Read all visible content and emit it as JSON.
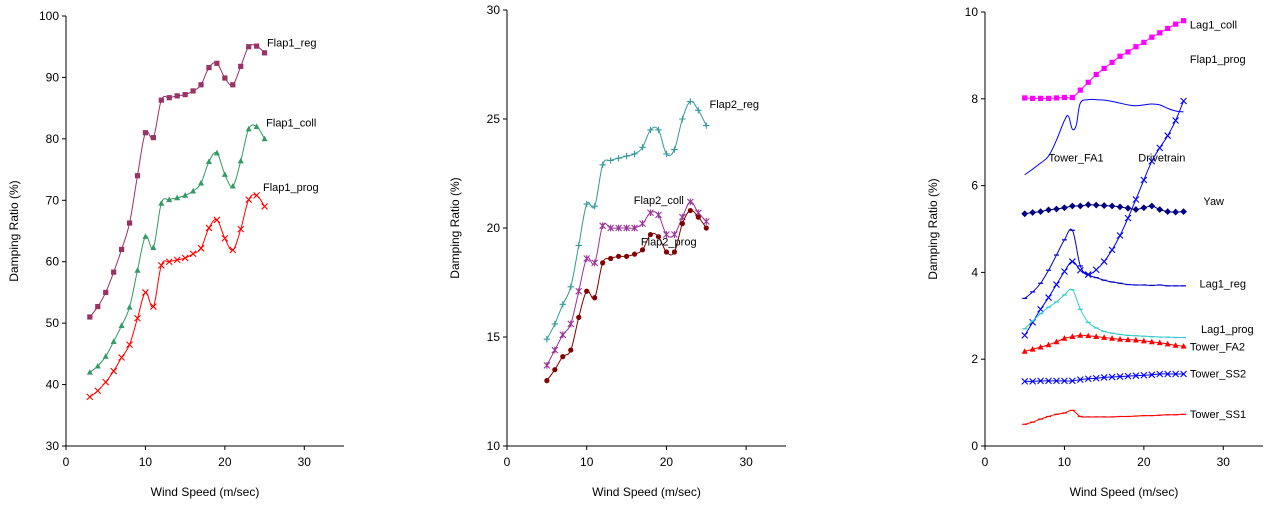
{
  "chart_data": [
    {
      "type": "line",
      "title": "",
      "xlabel": "Wind Speed (m/sec)",
      "ylabel": "Damping Ratio (%)",
      "xlim": [
        0,
        35
      ],
      "ylim": [
        30,
        100
      ],
      "xticks": [
        0,
        10,
        20,
        30
      ],
      "yticks": [
        30,
        40,
        50,
        60,
        70,
        80,
        90,
        100
      ],
      "grid": false,
      "series": [
        {
          "name": "Flap1_reg",
          "color": "#993366",
          "marker": "square",
          "x": [
            3,
            4,
            5,
            6,
            7,
            8,
            9,
            10,
            11,
            12,
            13,
            14,
            15,
            16,
            17,
            18,
            19,
            20,
            21,
            22,
            23,
            24,
            25
          ],
          "y": [
            51,
            52.7,
            55,
            58.3,
            62,
            66.3,
            74,
            81,
            80.2,
            86.3,
            86.7,
            87,
            87.2,
            87.8,
            88.8,
            91.6,
            92.3,
            89.9,
            88.8,
            91.8,
            95,
            95.1,
            94
          ]
        },
        {
          "name": "Flap1_coll",
          "color": "#339966",
          "marker": "triangle",
          "x": [
            3,
            4,
            5,
            6,
            7,
            8,
            9,
            10,
            11,
            12,
            13,
            14,
            15,
            16,
            17,
            18,
            19,
            20,
            21,
            22,
            23,
            24,
            25
          ],
          "y": [
            42,
            43,
            44.6,
            47,
            49.6,
            52.6,
            58.6,
            64.1,
            62.3,
            69.5,
            70.1,
            70.4,
            70.8,
            71.5,
            72.8,
            76.3,
            77.7,
            74.2,
            72.3,
            76.4,
            81.6,
            82,
            80
          ]
        },
        {
          "name": "Flap1_prog",
          "color": "#ff0000",
          "marker": "x",
          "x": [
            3,
            4,
            5,
            6,
            7,
            8,
            9,
            10,
            11,
            12,
            13,
            14,
            15,
            16,
            17,
            18,
            19,
            20,
            21,
            22,
            23,
            24,
            25
          ],
          "y": [
            38,
            39,
            40.4,
            42.2,
            44.4,
            46.5,
            50.8,
            55,
            52.7,
            59.4,
            60,
            60.3,
            60.6,
            61.3,
            62.2,
            65.5,
            66.8,
            63.8,
            61.9,
            65.3,
            70.1,
            70.8,
            69
          ]
        }
      ],
      "annotations": [
        {
          "text": "Flap1_reg",
          "x": 25.3,
          "y": 95
        },
        {
          "text": "Flap1_coll",
          "x": 25.2,
          "y": 82
        },
        {
          "text": "Flap1_prog",
          "x": 24.8,
          "y": 71.5
        }
      ]
    },
    {
      "type": "line",
      "title": "",
      "xlabel": "Wind Speed (m/sec)",
      "ylabel": "Damping Ratio (%)",
      "xlim": [
        0,
        35
      ],
      "ylim": [
        10,
        30
      ],
      "xticks": [
        0,
        10,
        20,
        30
      ],
      "yticks": [
        10,
        15,
        20,
        25,
        30
      ],
      "grid": false,
      "series": [
        {
          "name": "Flap2_reg",
          "color": "#339999",
          "marker": "plus",
          "x": [
            5,
            6,
            7,
            8,
            9,
            10,
            11,
            12,
            13,
            14,
            15,
            16,
            17,
            18,
            19,
            20,
            21,
            22,
            23,
            24,
            25
          ],
          "y": [
            14.9,
            15.6,
            16.5,
            17.3,
            19.2,
            21.1,
            21,
            22.9,
            23.1,
            23.2,
            23.3,
            23.4,
            23.7,
            24.5,
            24.5,
            23.4,
            23.6,
            25,
            25.8,
            25.4,
            24.7
          ]
        },
        {
          "name": "Flap2_coll",
          "color": "#993399",
          "marker": "star",
          "x": [
            5,
            6,
            7,
            8,
            9,
            10,
            11,
            12,
            13,
            14,
            15,
            16,
            17,
            18,
            19,
            20,
            21,
            22,
            23,
            24,
            25
          ],
          "y": [
            13.7,
            14.4,
            15.1,
            15.6,
            17.1,
            18.6,
            18.4,
            20.1,
            20,
            20,
            20,
            20,
            20.2,
            20.7,
            20.6,
            19.7,
            19.7,
            20.5,
            21.2,
            20.7,
            20.3
          ]
        },
        {
          "name": "Flap2_prog",
          "color": "#800000",
          "marker": "dot",
          "x": [
            5,
            6,
            7,
            8,
            9,
            10,
            11,
            12,
            13,
            14,
            15,
            16,
            17,
            18,
            19,
            20,
            21,
            22,
            23,
            24,
            25
          ],
          "y": [
            13,
            13.5,
            14.1,
            14.4,
            15.9,
            17.1,
            16.8,
            18.4,
            18.6,
            18.7,
            18.7,
            18.8,
            19,
            19.7,
            19.6,
            18.9,
            18.9,
            20.2,
            20.8,
            20.5,
            20
          ]
        }
      ],
      "annotations": [
        {
          "text": "Flap2_reg",
          "x": 25.4,
          "y": 25.5
        },
        {
          "text": "Flap2_coll",
          "x": 15.9,
          "y": 21.1
        },
        {
          "text": "Flap2_prog",
          "x": 16.8,
          "y": 19.2
        }
      ]
    },
    {
      "type": "line",
      "title": "",
      "xlabel": "Wind Speed (m/sec)",
      "ylabel": "Damping Ratio (%)",
      "xlim": [
        0,
        35
      ],
      "ylim": [
        0,
        10
      ],
      "xticks": [
        0,
        10,
        20,
        30
      ],
      "yticks": [
        0,
        2,
        4,
        6,
        8,
        10
      ],
      "grid": false,
      "series": [
        {
          "name": "Lag1_coll",
          "color": "#ff00ff",
          "marker": "square",
          "x": [
            5,
            6,
            7,
            8,
            9,
            10,
            11,
            12,
            13,
            14,
            15,
            16,
            17,
            18,
            19,
            20,
            21,
            22,
            23,
            24,
            25
          ],
          "y": [
            8.02,
            8.01,
            8.01,
            8.01,
            8.02,
            8.03,
            8.03,
            8.2,
            8.38,
            8.56,
            8.7,
            8.84,
            8.98,
            9.08,
            9.2,
            9.3,
            9.42,
            9.52,
            9.62,
            9.72,
            9.8
          ]
        },
        {
          "name": "Tower_FA1",
          "color": "#0000ff",
          "marker": "none",
          "x": [
            5,
            6,
            7,
            8,
            9,
            10,
            10.5,
            11,
            11.5,
            12,
            13,
            14,
            15,
            16,
            17,
            18,
            19,
            20,
            21,
            22,
            23,
            24,
            25
          ],
          "y": [
            6.25,
            6.38,
            6.52,
            6.68,
            7.05,
            7.5,
            7.6,
            7.3,
            7.4,
            7.9,
            7.98,
            7.98,
            7.97,
            7.94,
            7.9,
            7.86,
            7.84,
            7.86,
            7.88,
            7.86,
            7.78,
            7.72,
            7.7
          ]
        },
        {
          "name": "Drivetrain",
          "color": "#0000ff",
          "marker": "x",
          "x": [
            5,
            6,
            7,
            8,
            9,
            10,
            11,
            12,
            13,
            14,
            15,
            16,
            17,
            18,
            19,
            20,
            21,
            22,
            23,
            24,
            25
          ],
          "y": [
            2.55,
            2.85,
            3.15,
            3.42,
            3.72,
            4.02,
            4.25,
            4.05,
            3.95,
            4.06,
            4.25,
            4.52,
            4.85,
            5.25,
            5.68,
            6.13,
            6.56,
            6.87,
            7.15,
            7.5,
            7.95
          ]
        },
        {
          "name": "Yaw",
          "color": "#000080",
          "marker": "diamond",
          "x": [
            5,
            6,
            7,
            8,
            9,
            10,
            11,
            12,
            13,
            14,
            15,
            16,
            17,
            18,
            19,
            20,
            21,
            22,
            23,
            24,
            25
          ],
          "y": [
            5.35,
            5.38,
            5.4,
            5.44,
            5.46,
            5.49,
            5.53,
            5.53,
            5.56,
            5.55,
            5.54,
            5.53,
            5.51,
            5.48,
            5.45,
            5.49,
            5.53,
            5.45,
            5.4,
            5.39,
            5.4
          ]
        },
        {
          "name": "Lag1_reg",
          "color": "#0000cc",
          "marker": "dash",
          "x": [
            5,
            6,
            7,
            8,
            9,
            10,
            11,
            12,
            13,
            14,
            15,
            16,
            17,
            18,
            19,
            20,
            21,
            22,
            23,
            24,
            25
          ],
          "y": [
            3.4,
            3.55,
            3.75,
            4.05,
            4.4,
            4.75,
            4.97,
            4.15,
            3.95,
            3.88,
            3.82,
            3.78,
            3.75,
            3.72,
            3.71,
            3.71,
            3.7,
            3.71,
            3.69,
            3.69,
            3.69
          ]
        },
        {
          "name": "Lag1_prog",
          "color": "#33cccc",
          "marker": "dash",
          "x": [
            5,
            6,
            7,
            8,
            9,
            10,
            11,
            12,
            13,
            14,
            15,
            16,
            17,
            18,
            19,
            20,
            21,
            22,
            23,
            24,
            25
          ],
          "y": [
            2.7,
            2.88,
            3.05,
            3.2,
            3.32,
            3.48,
            3.6,
            3.15,
            2.85,
            2.72,
            2.64,
            2.6,
            2.57,
            2.55,
            2.54,
            2.53,
            2.52,
            2.51,
            2.51,
            2.5,
            2.5
          ]
        },
        {
          "name": "Tower_FA2",
          "color": "#ff0000",
          "marker": "triangle",
          "x": [
            5,
            6,
            7,
            8,
            9,
            10,
            11,
            12,
            13,
            14,
            15,
            16,
            17,
            18,
            19,
            20,
            21,
            22,
            23,
            24,
            25
          ],
          "y": [
            2.18,
            2.23,
            2.28,
            2.33,
            2.4,
            2.48,
            2.52,
            2.55,
            2.54,
            2.52,
            2.5,
            2.48,
            2.46,
            2.45,
            2.44,
            2.42,
            2.4,
            2.38,
            2.35,
            2.32,
            2.3
          ]
        },
        {
          "name": "Tower_SS2",
          "color": "#0000ff",
          "marker": "x",
          "x": [
            5,
            6,
            7,
            8,
            9,
            10,
            11,
            12,
            13,
            14,
            15,
            16,
            17,
            18,
            19,
            20,
            21,
            22,
            23,
            24,
            25
          ],
          "y": [
            1.49,
            1.49,
            1.5,
            1.5,
            1.5,
            1.5,
            1.5,
            1.53,
            1.55,
            1.56,
            1.58,
            1.59,
            1.6,
            1.61,
            1.62,
            1.63,
            1.64,
            1.66,
            1.66,
            1.66,
            1.66
          ]
        },
        {
          "name": "Tower_SS1",
          "color": "#ff0000",
          "marker": "dash",
          "x": [
            5,
            6,
            7,
            8,
            9,
            10,
            11,
            12,
            13,
            14,
            15,
            16,
            17,
            18,
            19,
            20,
            21,
            22,
            23,
            24,
            25
          ],
          "y": [
            0.5,
            0.55,
            0.62,
            0.68,
            0.73,
            0.76,
            0.82,
            0.68,
            0.67,
            0.67,
            0.67,
            0.67,
            0.68,
            0.68,
            0.69,
            0.7,
            0.7,
            0.71,
            0.72,
            0.72,
            0.73
          ]
        }
      ],
      "annotations": [
        {
          "text": "Lag1_coll",
          "x": 25.8,
          "y": 9.62
        },
        {
          "text": "Flap1_prog",
          "x": 25.8,
          "y": 8.82
        },
        {
          "text": "Tower_FA1",
          "x": 8,
          "y": 6.55
        },
        {
          "text": "Drivetrain",
          "x": 19.3,
          "y": 6.55
        },
        {
          "text": "Yaw",
          "x": 27.5,
          "y": 5.55
        },
        {
          "text": "Lag1_reg",
          "x": 27,
          "y": 3.65
        },
        {
          "text": "Lag1_prog",
          "x": 27.2,
          "y": 2.6
        },
        {
          "text": "Tower_FA2",
          "x": 25.8,
          "y": 2.2
        },
        {
          "text": "Tower_SS2",
          "x": 25.8,
          "y": 1.58
        },
        {
          "text": "Tower_SS1",
          "x": 25.8,
          "y": 0.65
        }
      ]
    }
  ]
}
